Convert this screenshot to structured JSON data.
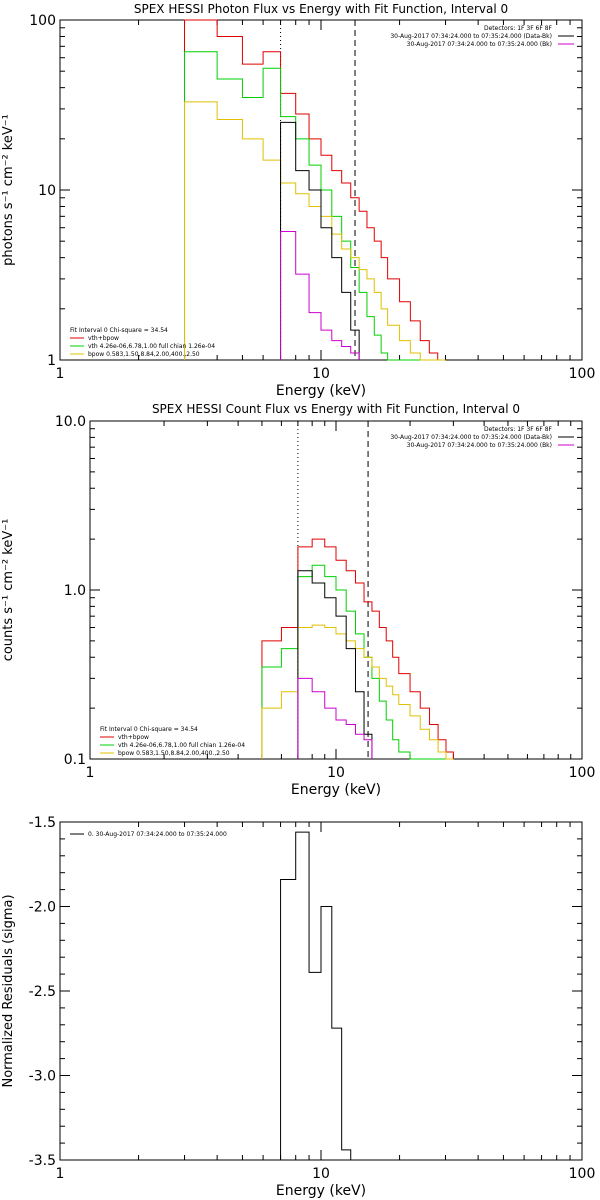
{
  "colors": {
    "data": "#000000",
    "background": "#cc00cc",
    "total": "#e00000",
    "vth": "#00d000",
    "bpow": "#e0c000"
  },
  "chart_data": [
    {
      "type": "line",
      "title": "SPEX HESSI Photon Flux vs Energy with Fit Function, Interval 0",
      "xlabel": "Energy (keV)",
      "ylabel": "photons s⁻¹ cm⁻² keV⁻¹",
      "xscale": "log",
      "yscale": "log",
      "xlim": [
        1,
        100
      ],
      "ylim": [
        1,
        100
      ],
      "xticks": [
        "1",
        "10",
        "100"
      ],
      "yticks": [
        "1",
        "10",
        "100"
      ],
      "markers": {
        "dotted_keV": 7.0,
        "dashed_keV": 13.5
      },
      "legend_top": [
        "Detectors: 1F 3F 6F 8F",
        "30-Aug-2017 07:34:24.000 to 07:35:24.000 (Data-Bk)",
        "30-Aug-2017 07:34:24.000 to 07:35:24.000 (Bk)"
      ],
      "legend_top_colors": [
        "none",
        "#000000",
        "#cc00cc"
      ],
      "legend_bottom": [
        "Fit Interval 0   Chi-square = 34.54",
        "vth+bpow",
        "vth 4.26e-06,6.78,1.00  full chian 1.26e-04",
        "bpow 0.583,1.50,8.84,2.00,400.,2.50"
      ],
      "legend_bottom_colors": [
        "none",
        "#e00000",
        "#00d000",
        "#e0c000"
      ],
      "series": [
        {
          "key": "total",
          "edges": [
            3,
            4,
            5,
            6,
            7,
            8,
            9,
            10,
            11,
            12,
            13,
            14,
            15,
            16,
            17,
            18,
            20,
            22,
            24,
            26,
            28,
            30
          ],
          "values": [
            100,
            80,
            55,
            65,
            37,
            28,
            20,
            16,
            13,
            11,
            9,
            7.5,
            6,
            5,
            4,
            3,
            2.2,
            1.7,
            1.3,
            1.1,
            1.0
          ]
        },
        {
          "key": "vth",
          "edges": [
            3,
            4,
            5,
            6,
            7,
            8,
            9,
            10,
            11,
            12,
            13,
            14,
            15,
            16,
            17,
            18,
            20,
            22,
            24,
            26,
            28,
            30
          ],
          "values": [
            65,
            45,
            35,
            52,
            27,
            20,
            14,
            10,
            7,
            5,
            3.5,
            2.5,
            1.8,
            1.4,
            1.1,
            1.0,
            1.0,
            1.0,
            1.0,
            1.0,
            1.0
          ]
        },
        {
          "key": "bpow",
          "edges": [
            3,
            4,
            5,
            6,
            7,
            8,
            9,
            10,
            11,
            12,
            13,
            14,
            15,
            16,
            17,
            18,
            20,
            22,
            24,
            26,
            28,
            30
          ],
          "values": [
            33,
            26,
            20,
            15,
            11,
            9.5,
            8,
            7,
            5.5,
            4.5,
            4.0,
            3.4,
            3.0,
            2.5,
            2.0,
            1.6,
            1.3,
            1.1,
            1.0,
            1.0,
            1.0
          ]
        },
        {
          "key": "data",
          "edges": [
            7,
            8,
            9,
            10,
            11,
            12,
            13,
            14
          ],
          "values": [
            25,
            13,
            10,
            6,
            4,
            2.5,
            1.5
          ]
        },
        {
          "key": "background",
          "edges": [
            7,
            8,
            9,
            10,
            11,
            12,
            13,
            14
          ],
          "values": [
            5.7,
            3.2,
            1.9,
            1.5,
            1.3,
            1.2,
            1.1
          ]
        }
      ]
    },
    {
      "type": "line",
      "title": "SPEX HESSI Count Flux vs Energy with Fit Function, Interval 0",
      "xlabel": "Energy (keV)",
      "ylabel": "counts s⁻¹ cm⁻² keV⁻¹",
      "xscale": "log",
      "yscale": "log",
      "xlim": [
        1,
        100
      ],
      "ylim": [
        0.1,
        10
      ],
      "xticks": [
        "1",
        "10",
        "100"
      ],
      "yticks": [
        "0.1",
        "1.0",
        "10.0"
      ],
      "markers": {
        "dotted_keV": 7.0,
        "dashed_keV": 13.5
      },
      "legend_top": [
        "Detectors: 1F 3F 6F 8F",
        "30-Aug-2017 07:34:24.000 to 07:35:24.000 (Data-Bk)",
        "30-Aug-2017 07:34:24.000 to 07:35:24.000 (Bk)"
      ],
      "legend_top_colors": [
        "none",
        "#000000",
        "#cc00cc"
      ],
      "legend_bottom": [
        "Fit Interval 0   Chi-square = 34.54",
        "vth+bpow",
        "vth 4.26e-06,6.78,1.00  full chian 1.26e-04",
        "bpow 0.583,1.50,8.84,2.00,400.,2.50"
      ],
      "legend_bottom_colors": [
        "none",
        "#e00000",
        "#00d000",
        "#e0c000"
      ],
      "series": [
        {
          "key": "total",
          "edges": [
            5,
            6,
            7,
            8,
            9,
            10,
            11,
            12,
            13,
            14,
            15,
            16,
            17,
            18,
            20,
            22,
            24,
            26,
            28,
            30
          ],
          "values": [
            0.5,
            0.6,
            1.8,
            2.0,
            1.8,
            1.5,
            1.3,
            1.1,
            0.85,
            0.75,
            0.6,
            0.5,
            0.4,
            0.32,
            0.25,
            0.2,
            0.16,
            0.13,
            0.11
          ]
        },
        {
          "key": "vth",
          "edges": [
            5,
            6,
            7,
            8,
            9,
            10,
            11,
            12,
            13,
            14,
            15,
            16,
            17,
            18,
            20,
            22,
            24,
            26,
            28,
            30
          ],
          "values": [
            0.35,
            0.45,
            1.2,
            1.4,
            1.2,
            1.0,
            0.75,
            0.55,
            0.4,
            0.3,
            0.22,
            0.17,
            0.13,
            0.11,
            0.1,
            0.1,
            0.1,
            0.1,
            0.1
          ]
        },
        {
          "key": "bpow",
          "edges": [
            5,
            6,
            7,
            8,
            9,
            10,
            11,
            12,
            13,
            14,
            15,
            16,
            17,
            18,
            20,
            22,
            24,
            26,
            28,
            30
          ],
          "values": [
            0.2,
            0.25,
            0.6,
            0.62,
            0.6,
            0.55,
            0.5,
            0.45,
            0.4,
            0.35,
            0.3,
            0.27,
            0.24,
            0.21,
            0.18,
            0.15,
            0.13,
            0.11,
            0.1
          ]
        },
        {
          "key": "data",
          "edges": [
            7,
            8,
            9,
            10,
            11,
            12,
            13,
            14
          ],
          "values": [
            1.3,
            1.1,
            0.9,
            0.7,
            0.45,
            0.25,
            0.14
          ]
        },
        {
          "key": "background",
          "edges": [
            7,
            8,
            9,
            10,
            11,
            12,
            13,
            14
          ],
          "values": [
            0.3,
            0.25,
            0.2,
            0.17,
            0.16,
            0.14,
            0.13
          ]
        }
      ]
    },
    {
      "type": "line",
      "title": "",
      "xlabel": "Energy (keV)",
      "ylabel": "Normalized Residuals (sigma)",
      "xscale": "log",
      "yscale": "linear",
      "xlim": [
        1,
        100
      ],
      "ylim": [
        -3.5,
        -1.5
      ],
      "xticks": [
        "1",
        "10",
        "100"
      ],
      "yticks": [
        "-3.5",
        "-3.0",
        "-2.5",
        "-2.0",
        "-1.5"
      ],
      "legend": "0. 30-Aug-2017 07:34:24.000 to 07:35:24.000",
      "series": [
        {
          "key": "data",
          "edges": [
            7,
            8,
            9,
            10,
            11,
            12,
            13,
            14
          ],
          "values": [
            -1.84,
            -1.56,
            -2.39,
            -2.0,
            -2.72,
            -3.44,
            -3.5
          ]
        }
      ]
    }
  ]
}
